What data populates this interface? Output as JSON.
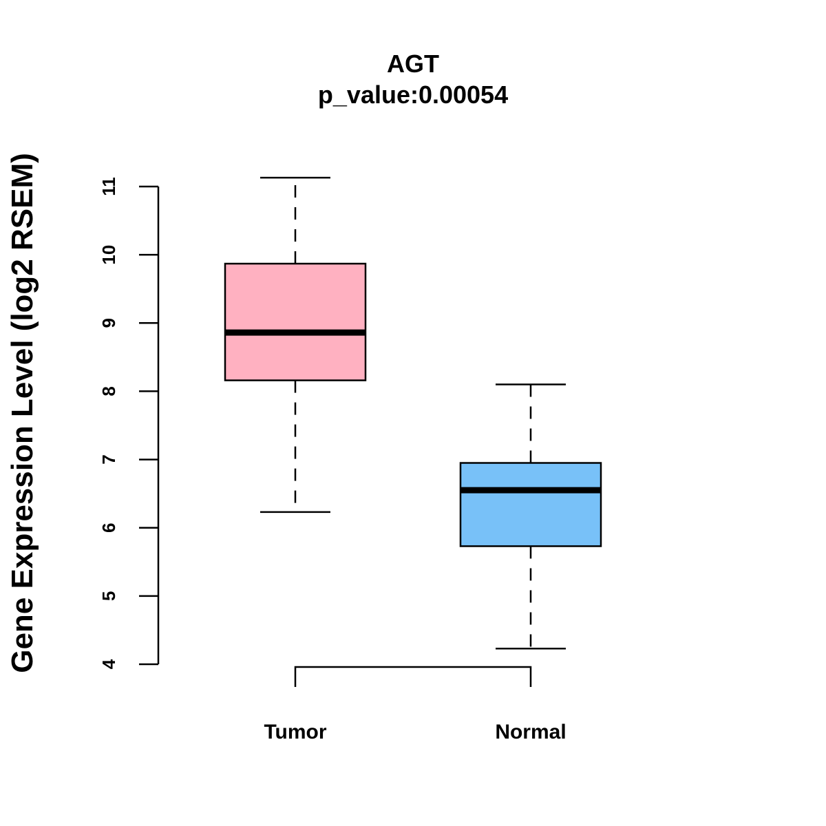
{
  "chart_data": {
    "type": "boxplot",
    "title": "AGT",
    "subtitle": "p_value:0.00054",
    "xlabel": "",
    "ylabel": "Gene Expression Level (log2 RSEM)",
    "ylim": [
      4,
      11
    ],
    "yticks": [
      4,
      5,
      6,
      7,
      8,
      9,
      10,
      11
    ],
    "grid": false,
    "categories": [
      "Tumor",
      "Normal"
    ],
    "series": [
      {
        "name": "Tumor",
        "whisker_low": 6.23,
        "q1": 8.16,
        "median": 8.86,
        "q3": 9.87,
        "whisker_high": 11.13,
        "color": "#FFB1C1"
      },
      {
        "name": "Normal",
        "whisker_low": 4.23,
        "q1": 5.73,
        "median": 6.55,
        "q3": 6.95,
        "whisker_high": 8.1,
        "color": "#78C1F8"
      }
    ],
    "comparison_bracket": {
      "between": [
        "Tumor",
        "Normal"
      ]
    }
  }
}
